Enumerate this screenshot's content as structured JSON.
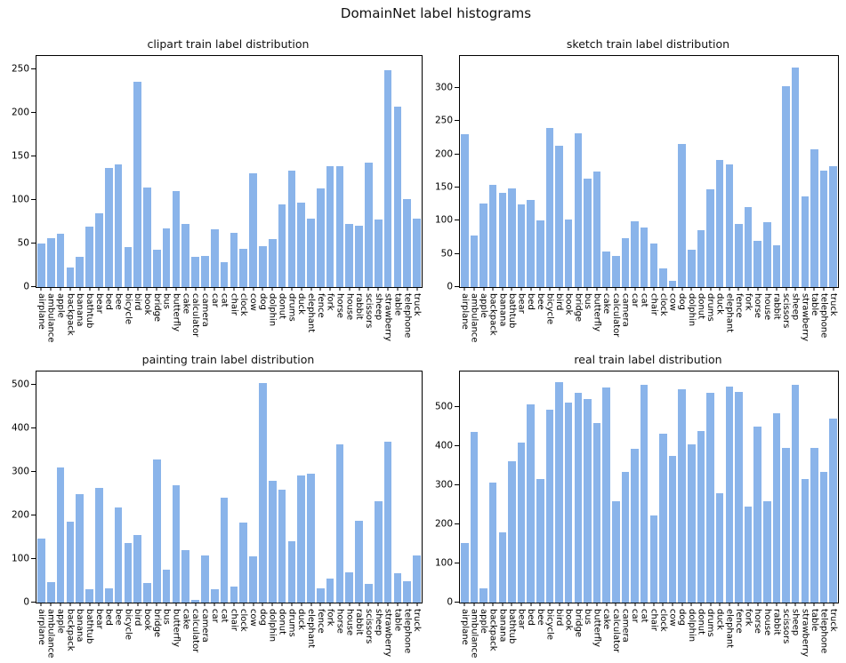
{
  "figure": {
    "title": "DomainNet label histograms"
  },
  "bar_color": "#8ab4ea",
  "categories": [
    "airplane",
    "ambulance",
    "apple",
    "backpack",
    "banana",
    "bathtub",
    "bear",
    "bed",
    "bee",
    "bicycle",
    "bird",
    "book",
    "bridge",
    "bus",
    "butterfly",
    "cake",
    "calculator",
    "camera",
    "car",
    "cat",
    "chair",
    "clock",
    "cow",
    "dog",
    "dolphin",
    "donut",
    "drums",
    "duck",
    "elephant",
    "fence",
    "fork",
    "horse",
    "house",
    "rabbit",
    "scissors",
    "sheep",
    "strawberry",
    "table",
    "telephone",
    "truck"
  ],
  "chart_data": [
    {
      "type": "bar",
      "title": "clipart train label distribution",
      "categories": [
        "airplane",
        "ambulance",
        "apple",
        "backpack",
        "banana",
        "bathtub",
        "bear",
        "bed",
        "bee",
        "bicycle",
        "bird",
        "book",
        "bridge",
        "bus",
        "butterfly",
        "cake",
        "calculator",
        "camera",
        "car",
        "cat",
        "chair",
        "clock",
        "cow",
        "dog",
        "dolphin",
        "donut",
        "drums",
        "duck",
        "elephant",
        "fence",
        "fork",
        "horse",
        "house",
        "rabbit",
        "scissors",
        "sheep",
        "strawberry",
        "table",
        "telephone",
        "truck"
      ],
      "values": [
        50,
        56,
        61,
        22,
        35,
        69,
        85,
        137,
        141,
        46,
        235,
        114,
        43,
        67,
        110,
        72,
        35,
        36,
        66,
        29,
        62,
        44,
        130,
        47,
        55,
        95,
        134,
        97,
        78,
        113,
        139,
        139,
        72,
        70,
        143,
        77,
        249,
        207,
        101,
        79
      ],
      "yticks": [
        0,
        50,
        100,
        150,
        200,
        250
      ],
      "ylim": [
        0,
        265
      ],
      "grid": false,
      "legend": false
    },
    {
      "type": "bar",
      "title": "sketch train label distribution",
      "categories": [
        "airplane",
        "ambulance",
        "apple",
        "backpack",
        "banana",
        "bathtub",
        "bear",
        "bed",
        "bee",
        "bicycle",
        "bird",
        "book",
        "bridge",
        "bus",
        "butterfly",
        "cake",
        "calculator",
        "camera",
        "car",
        "cat",
        "chair",
        "clock",
        "cow",
        "dog",
        "dolphin",
        "donut",
        "drums",
        "duck",
        "elephant",
        "fence",
        "fork",
        "horse",
        "house",
        "rabbit",
        "scissors",
        "sheep",
        "strawberry",
        "table",
        "telephone",
        "truck"
      ],
      "values": [
        230,
        77,
        126,
        154,
        142,
        148,
        124,
        131,
        100,
        239,
        213,
        102,
        232,
        163,
        174,
        53,
        47,
        74,
        99,
        90,
        65,
        28,
        10,
        216,
        56,
        86,
        147,
        191,
        185,
        95,
        121,
        70,
        98,
        63,
        303,
        330,
        137,
        208,
        176,
        182
      ],
      "yticks": [
        0,
        50,
        100,
        150,
        200,
        250,
        300
      ],
      "ylim": [
        0,
        348
      ],
      "grid": false,
      "legend": false
    },
    {
      "type": "bar",
      "title": "painting train label distribution",
      "categories": [
        "airplane",
        "ambulance",
        "apple",
        "backpack",
        "banana",
        "bathtub",
        "bear",
        "bed",
        "bee",
        "bicycle",
        "bird",
        "book",
        "bridge",
        "bus",
        "butterfly",
        "cake",
        "calculator",
        "camera",
        "car",
        "cat",
        "chair",
        "clock",
        "cow",
        "dog",
        "dolphin",
        "donut",
        "drums",
        "duck",
        "elephant",
        "fence",
        "fork",
        "horse",
        "house",
        "rabbit",
        "scissors",
        "sheep",
        "strawberry",
        "table",
        "telephone",
        "truck"
      ],
      "values": [
        147,
        48,
        310,
        185,
        250,
        30,
        264,
        32,
        219,
        136,
        155,
        44,
        328,
        76,
        270,
        120,
        7,
        108,
        31,
        241,
        37,
        184,
        107,
        505,
        280,
        260,
        141,
        292,
        297,
        33,
        55,
        364,
        70,
        188,
        43,
        232,
        370,
        68,
        50,
        108
      ],
      "yticks": [
        0,
        100,
        200,
        300,
        400,
        500
      ],
      "ylim": [
        0,
        531
      ],
      "grid": false,
      "legend": false
    },
    {
      "type": "bar",
      "title": "real train label distribution",
      "categories": [
        "airplane",
        "ambulance",
        "apple",
        "backpack",
        "banana",
        "bathtub",
        "bear",
        "bed",
        "bee",
        "bicycle",
        "bird",
        "book",
        "bridge",
        "bus",
        "butterfly",
        "cake",
        "calculator",
        "camera",
        "car",
        "cat",
        "chair",
        "clock",
        "cow",
        "dog",
        "dolphin",
        "donut",
        "drums",
        "duck",
        "elephant",
        "fence",
        "fork",
        "horse",
        "house",
        "rabbit",
        "scissors",
        "sheep",
        "strawberry",
        "table",
        "telephone",
        "truck"
      ],
      "values": [
        152,
        435,
        37,
        306,
        180,
        360,
        408,
        505,
        316,
        493,
        562,
        510,
        536,
        520,
        459,
        549,
        259,
        334,
        393,
        555,
        223,
        432,
        375,
        545,
        405,
        438,
        536,
        279,
        551,
        538,
        244,
        450,
        258,
        483,
        396,
        557,
        316,
        395,
        333,
        470
      ],
      "yticks": [
        0,
        100,
        200,
        300,
        400,
        500
      ],
      "ylim": [
        0,
        590
      ],
      "grid": false,
      "legend": false
    }
  ]
}
